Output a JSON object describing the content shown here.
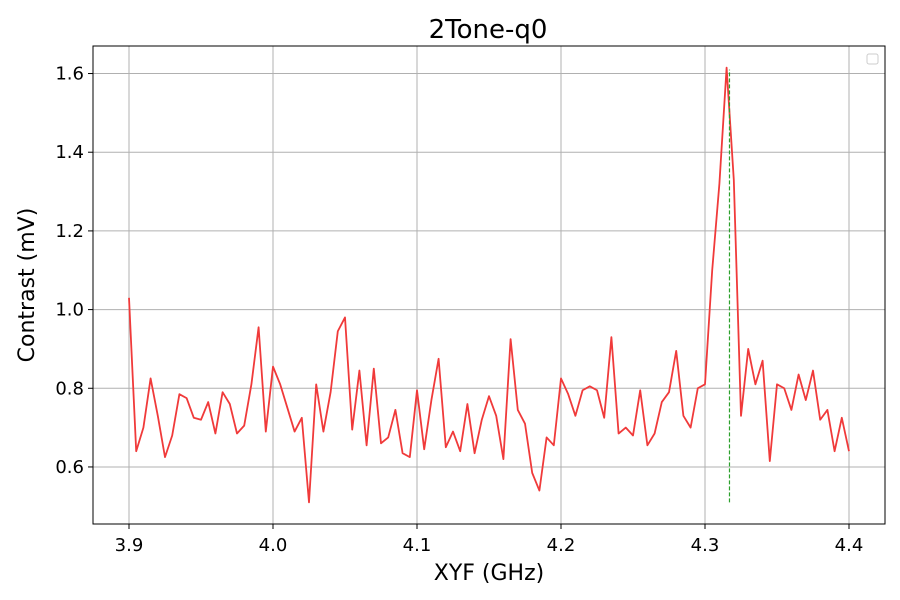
{
  "chart_data": {
    "type": "line",
    "title": "2Tone-q0",
    "xlabel": "XYF (GHz)",
    "ylabel": "Contrast (mV)",
    "xlim": [
      3.875,
      4.425
    ],
    "ylim": [
      0.455,
      1.67
    ],
    "x_ticks": [
      3.9,
      4.0,
      4.1,
      4.2,
      4.3,
      4.4
    ],
    "x_tick_labels": [
      "3.9",
      "4.0",
      "4.1",
      "4.2",
      "4.3",
      "4.4"
    ],
    "y_ticks": [
      0.6,
      0.8,
      1.0,
      1.2,
      1.4,
      1.6
    ],
    "y_tick_labels": [
      "0.6",
      "0.8",
      "1.0",
      "1.2",
      "1.4",
      "1.6"
    ],
    "grid": true,
    "legend": "top-right (empty)",
    "series": [
      {
        "color": "#f03a3a",
        "style": "solid",
        "x": [
          3.9,
          3.905,
          3.91,
          3.915,
          3.92,
          3.925,
          3.93,
          3.935,
          3.94,
          3.945,
          3.95,
          3.955,
          3.96,
          3.965,
          3.97,
          3.975,
          3.98,
          3.985,
          3.99,
          3.995,
          4.0,
          4.005,
          4.01,
          4.015,
          4.02,
          4.025,
          4.03,
          4.035,
          4.04,
          4.045,
          4.05,
          4.055,
          4.06,
          4.065,
          4.07,
          4.075,
          4.08,
          4.085,
          4.09,
          4.095,
          4.1,
          4.105,
          4.11,
          4.115,
          4.12,
          4.125,
          4.13,
          4.135,
          4.14,
          4.145,
          4.15,
          4.155,
          4.16,
          4.165,
          4.17,
          4.175,
          4.18,
          4.185,
          4.19,
          4.195,
          4.2,
          4.205,
          4.21,
          4.215,
          4.22,
          4.225,
          4.23,
          4.235,
          4.24,
          4.245,
          4.25,
          4.255,
          4.26,
          4.265,
          4.27,
          4.275,
          4.28,
          4.285,
          4.29,
          4.295,
          4.3,
          4.305,
          4.31,
          4.315,
          4.32,
          4.325,
          4.33,
          4.335,
          4.34,
          4.345,
          4.35,
          4.355,
          4.36,
          4.365,
          4.37,
          4.375,
          4.38,
          4.385,
          4.39,
          4.395,
          4.4
        ],
        "y": [
          1.03,
          0.64,
          0.7,
          0.825,
          0.73,
          0.625,
          0.68,
          0.785,
          0.775,
          0.725,
          0.72,
          0.765,
          0.685,
          0.79,
          0.76,
          0.685,
          0.705,
          0.81,
          0.955,
          0.69,
          0.855,
          0.81,
          0.75,
          0.69,
          0.725,
          0.51,
          0.81,
          0.69,
          0.79,
          0.945,
          0.98,
          0.695,
          0.845,
          0.655,
          0.85,
          0.66,
          0.675,
          0.745,
          0.635,
          0.625,
          0.795,
          0.645,
          0.77,
          0.875,
          0.65,
          0.69,
          0.64,
          0.76,
          0.635,
          0.72,
          0.78,
          0.73,
          0.62,
          0.925,
          0.745,
          0.71,
          0.585,
          0.54,
          0.675,
          0.655,
          0.825,
          0.785,
          0.73,
          0.795,
          0.805,
          0.795,
          0.725,
          0.93,
          0.685,
          0.7,
          0.68,
          0.795,
          0.655,
          0.685,
          0.765,
          0.79,
          0.895,
          0.73,
          0.7,
          0.8,
          0.81,
          1.1,
          1.32,
          1.615,
          1.33,
          0.73,
          0.9,
          0.81,
          0.87,
          0.615,
          0.81,
          0.8,
          0.745,
          0.835,
          0.77,
          0.845,
          0.72,
          0.745,
          0.64,
          0.725,
          0.64
        ]
      },
      {
        "color": "#2ca02c",
        "style": "dashed",
        "x": [
          4.317,
          4.317
        ],
        "y": [
          0.51,
          1.61
        ]
      }
    ]
  }
}
